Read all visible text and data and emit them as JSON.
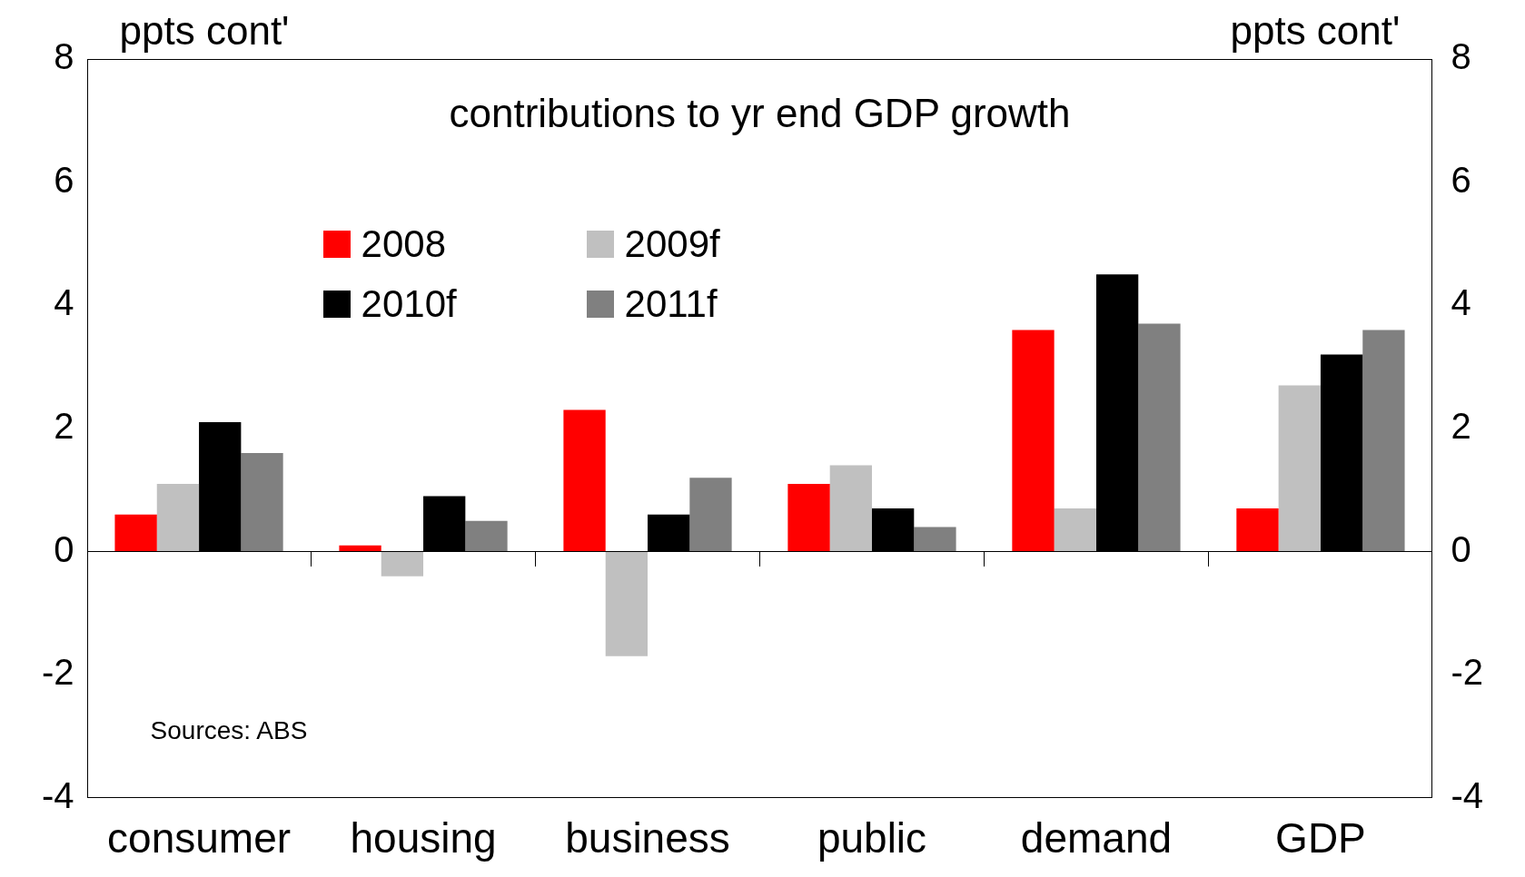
{
  "chart_data": {
    "type": "bar",
    "title": "contributions to yr end GDP growth",
    "ylabel": "ppts cont'",
    "y2label": "ppts cont'",
    "categories": [
      "consumer",
      "housing",
      "business",
      "public",
      "demand",
      "GDP"
    ],
    "series": [
      {
        "name": "2008",
        "color": "#ff0000",
        "values": [
          0.6,
          0.1,
          2.3,
          1.1,
          3.6,
          0.7
        ]
      },
      {
        "name": "2009f",
        "color": "#c0c0c0",
        "values": [
          1.1,
          -0.4,
          -1.7,
          1.4,
          0.7,
          2.7
        ]
      },
      {
        "name": "2010f",
        "color": "#000000",
        "values": [
          2.1,
          0.9,
          0.6,
          0.7,
          4.5,
          3.2
        ]
      },
      {
        "name": "2011f",
        "color": "#808080",
        "values": [
          1.6,
          0.5,
          1.2,
          0.4,
          3.7,
          3.6
        ]
      }
    ],
    "ylim": [
      -4,
      8
    ],
    "yticks": [
      -4,
      -2,
      0,
      2,
      4,
      6,
      8
    ],
    "y2lim": [
      -4,
      8
    ],
    "y2ticks": [
      -4,
      -2,
      0,
      2,
      4,
      6,
      8
    ],
    "grid": false,
    "legend": "top left",
    "annotations": [
      "Sources: ABS"
    ]
  }
}
